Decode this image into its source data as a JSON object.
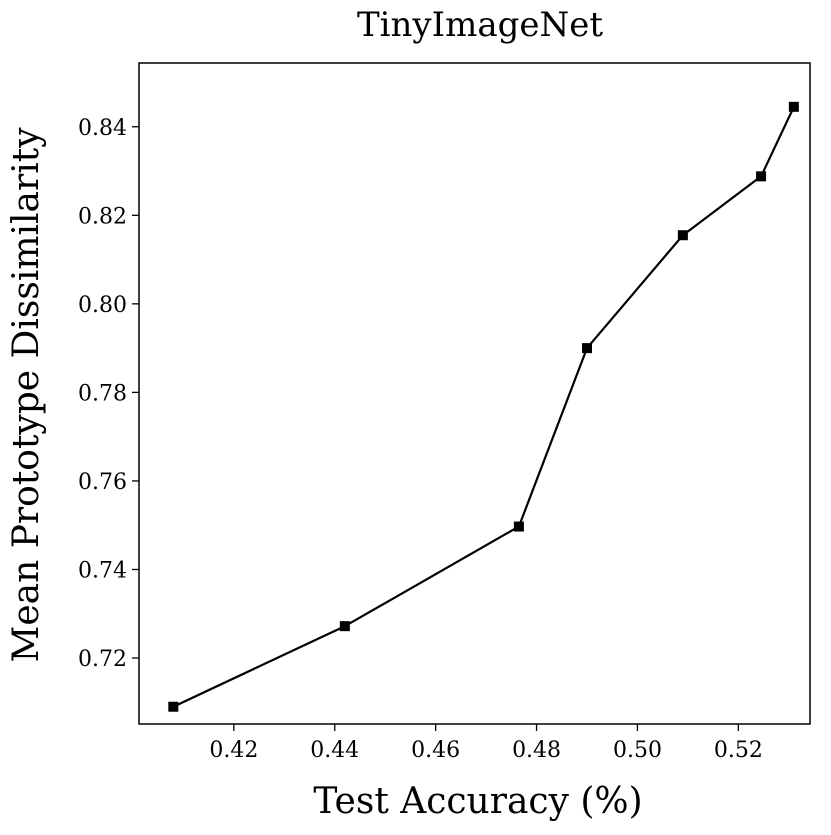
{
  "chart_data": {
    "type": "line",
    "title": "TinyImageNet",
    "xlabel": "Test Accuracy (%)",
    "ylabel": "Mean Prototype Dissimilarity",
    "xlim": [
      0.4012,
      0.5342
    ],
    "ylim": [
      0.7051,
      0.8544
    ],
    "xticks": [
      0.42,
      0.44,
      0.46,
      0.48,
      0.5,
      0.52
    ],
    "xtick_labels": [
      "0.42",
      "0.44",
      "0.46",
      "0.48",
      "0.50",
      "0.52"
    ],
    "yticks": [
      0.72,
      0.74,
      0.76,
      0.78,
      0.8,
      0.82,
      0.84
    ],
    "ytick_labels": [
      "0.72",
      "0.74",
      "0.76",
      "0.78",
      "0.80",
      "0.82",
      "0.84"
    ],
    "grid": false,
    "marker": "square",
    "series": [
      {
        "color": "#000000",
        "x": [
          0.408,
          0.442,
          0.4765,
          0.49,
          0.509,
          0.5245,
          0.531
        ],
        "y": [
          0.709,
          0.7272,
          0.7497,
          0.79,
          0.8155,
          0.8288,
          0.8445
        ]
      }
    ]
  }
}
